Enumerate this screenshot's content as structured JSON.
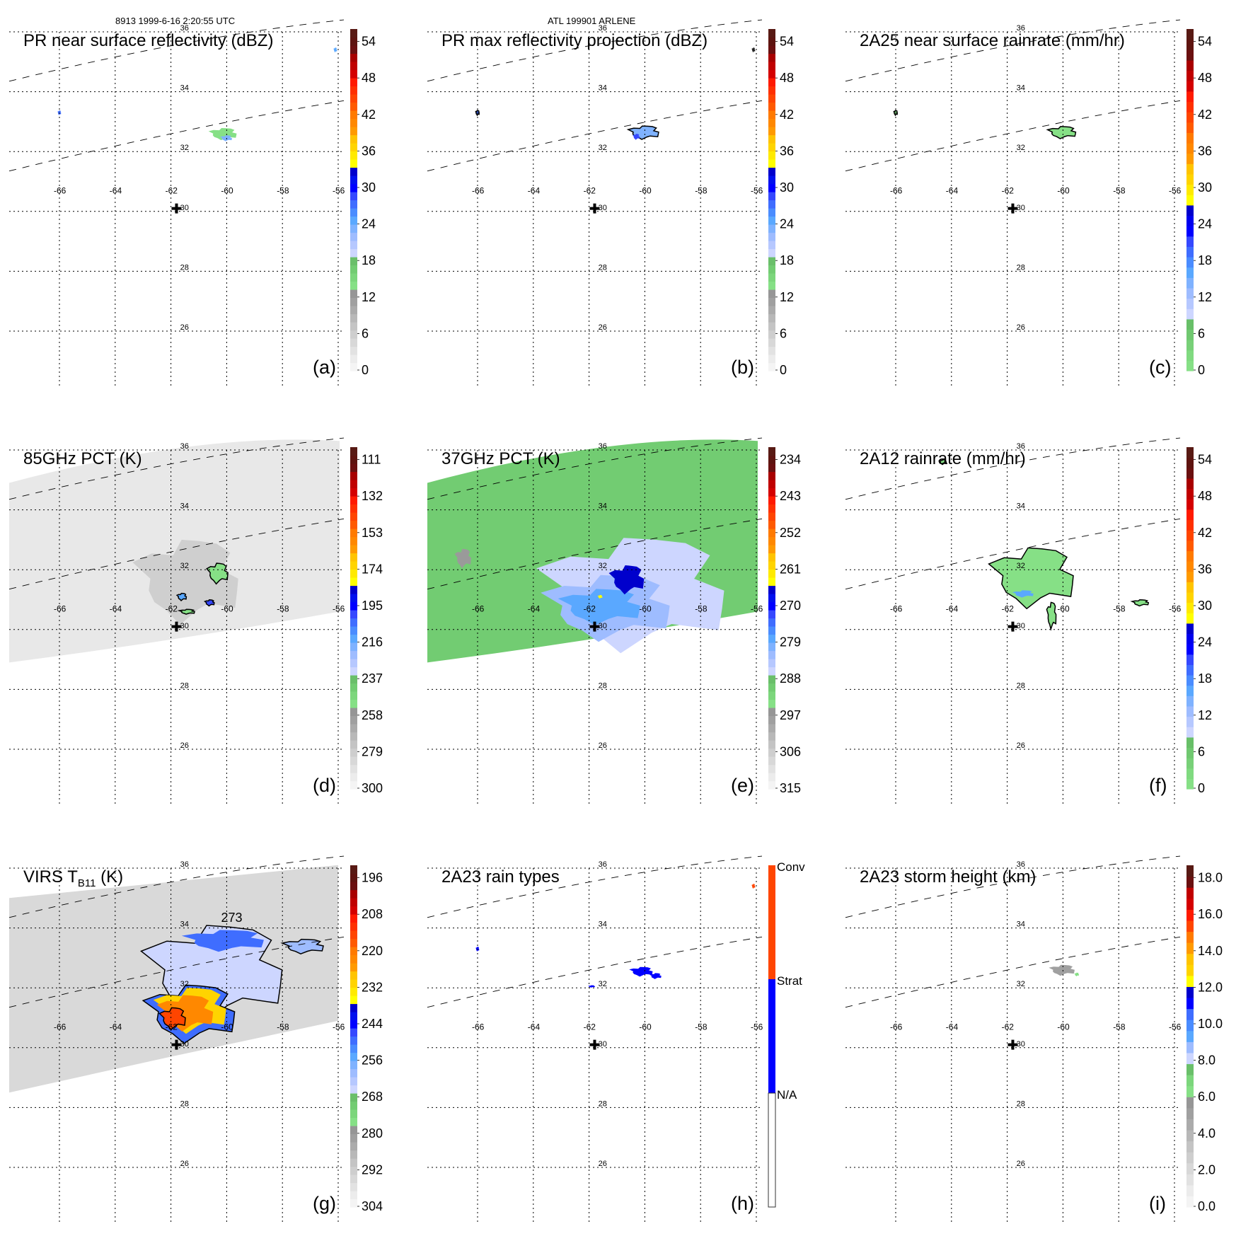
{
  "header": {
    "left": "8913 1999-6-16 2:20:55 UTC",
    "center": "ATL 199901 ARLENE"
  },
  "chart_data": [
    {
      "type": "heatmap",
      "panel_label": "(a)",
      "title": "PR near surface reflectivity (dBZ)",
      "lon_ticks": [
        "-66",
        "-64",
        "-62",
        "-60",
        "-58",
        "-56"
      ],
      "lat_ticks": [
        "36",
        "34",
        "32",
        "30",
        "28",
        "26"
      ],
      "colorbar": {
        "kind": "continuous",
        "ticks": [
          "0",
          "6",
          "12",
          "18",
          "24",
          "30",
          "36",
          "42",
          "48",
          "54"
        ],
        "scheme": "reflectivity"
      },
      "features": [
        {
          "lon": -60.0,
          "lat": 32.6,
          "value": "18-24",
          "desc": "scattered light echoes"
        },
        {
          "lon": -66.0,
          "lat": 33.3,
          "value": "28",
          "desc": "small echo"
        },
        {
          "lon": -56.1,
          "lat": 35.4,
          "value": "24",
          "desc": "small echo at swath edge"
        }
      ],
      "center_marker": {
        "lon": -61.8,
        "lat": 30.1
      }
    },
    {
      "type": "heatmap",
      "panel_label": "(b)",
      "title": "PR max reflectivity projection (dBZ)",
      "lon_ticks": [
        "-66",
        "-64",
        "-62",
        "-60",
        "-58",
        "-56"
      ],
      "lat_ticks": [
        "36",
        "34",
        "32",
        "30",
        "28",
        "26"
      ],
      "colorbar": {
        "kind": "continuous",
        "ticks": [
          "0",
          "6",
          "12",
          "18",
          "24",
          "30",
          "36",
          "42",
          "48",
          "54"
        ],
        "scheme": "reflectivity"
      },
      "features": [
        {
          "lon": -60.0,
          "lat": 32.7,
          "value": "24-30",
          "desc": "echo cluster with contour"
        },
        {
          "lon": -66.0,
          "lat": 33.3,
          "value": "30",
          "desc": "small echo"
        }
      ],
      "center_marker": {
        "lon": -61.8,
        "lat": 30.1
      }
    },
    {
      "type": "heatmap",
      "panel_label": "(c)",
      "title": "2A25 near surface rainrate (mm/hr)",
      "lon_ticks": [
        "-66",
        "-64",
        "-62",
        "-60",
        "-58",
        "-56"
      ],
      "lat_ticks": [
        "36",
        "34",
        "32",
        "30",
        "28",
        "26"
      ],
      "colorbar": {
        "kind": "continuous",
        "ticks": [
          "0",
          "6",
          "12",
          "18",
          "24",
          "30",
          "36",
          "42",
          "48",
          "54"
        ],
        "scheme": "rain"
      },
      "features": [
        {
          "lon": -60.0,
          "lat": 32.7,
          "value": "0-6",
          "desc": "light rain cluster"
        }
      ],
      "center_marker": {
        "lon": -61.8,
        "lat": 30.1
      }
    },
    {
      "type": "heatmap",
      "panel_label": "(d)",
      "title": "85GHz PCT (K)",
      "lon_ticks": [
        "-66",
        "-64",
        "-62",
        "-60",
        "-58",
        "-56"
      ],
      "lat_ticks": [
        "36",
        "34",
        "32",
        "30",
        "28",
        "26"
      ],
      "colorbar": {
        "kind": "continuous",
        "ticks": [
          "300",
          "279",
          "258",
          "237",
          "216",
          "195",
          "174",
          "153",
          "132",
          "111"
        ],
        "scheme": "reflectivity"
      },
      "features": [
        {
          "lon": -60.3,
          "lat": 31.8,
          "value": "237",
          "desc": "depressed PCT area"
        },
        {
          "lon": -61.6,
          "lat": 31.0,
          "value": "216",
          "desc": "small cold cell"
        },
        {
          "lon": -60.6,
          "lat": 30.8,
          "value": "195",
          "desc": "small cold cell"
        }
      ],
      "center_marker": {
        "lon": -61.8,
        "lat": 30.1
      }
    },
    {
      "type": "heatmap",
      "panel_label": "(e)",
      "title": "37GHz PCT (K)",
      "lon_ticks": [
        "-66",
        "-64",
        "-62",
        "-60",
        "-58",
        "-56"
      ],
      "lat_ticks": [
        "36",
        "34",
        "32",
        "30",
        "28",
        "26"
      ],
      "colorbar": {
        "kind": "continuous",
        "ticks": [
          "315",
          "306",
          "297",
          "288",
          "279",
          "270",
          "261",
          "252",
          "243",
          "234"
        ],
        "scheme": "reflectivity"
      },
      "features": [
        {
          "lon": -60.5,
          "lat": 31.6,
          "value": "265",
          "desc": "low PCT core"
        },
        {
          "lon": -61.7,
          "lat": 31.1,
          "value": "261",
          "desc": "yellow pixel"
        }
      ],
      "center_marker": {
        "lon": -61.8,
        "lat": 30.1
      }
    },
    {
      "type": "heatmap",
      "panel_label": "(f)",
      "title": "2A12 rainrate (mm/hr)",
      "lon_ticks": [
        "-66",
        "-64",
        "-62",
        "-60",
        "-58",
        "-56"
      ],
      "lat_ticks": [
        "36",
        "34",
        "32",
        "30",
        "28",
        "26"
      ],
      "colorbar": {
        "kind": "continuous",
        "ticks": [
          "0",
          "6",
          "12",
          "18",
          "24",
          "30",
          "36",
          "42",
          "48",
          "54"
        ],
        "scheme": "rain"
      },
      "features": [
        {
          "lon": -61.0,
          "lat": 31.8,
          "value": "0-12",
          "desc": "broad light rain area"
        },
        {
          "lon": -57.2,
          "lat": 30.9,
          "value": "0-6",
          "desc": "rain band"
        }
      ],
      "center_marker": {
        "lon": -61.8,
        "lat": 30.1
      }
    },
    {
      "type": "heatmap",
      "panel_label": "(g)",
      "title": "VIRS T",
      "title_sub": "B11",
      "title_suffix": " (K)",
      "annotation": "273",
      "lon_ticks": [
        "-66",
        "-64",
        "-62",
        "-60",
        "-58",
        "-56"
      ],
      "lat_ticks": [
        "36",
        "34",
        "32",
        "30",
        "28",
        "26"
      ],
      "colorbar": {
        "kind": "continuous",
        "ticks": [
          "304",
          "292",
          "280",
          "268",
          "256",
          "244",
          "232",
          "220",
          "208",
          "196"
        ],
        "scheme": "reflectivity"
      },
      "features": [
        {
          "lon": -61.3,
          "lat": 31.2,
          "value": "208-232",
          "desc": "cold cloud top core"
        },
        {
          "lon": -60.5,
          "lat": 33.5,
          "value": "244-268",
          "desc": "cloud band"
        }
      ],
      "center_marker": {
        "lon": -61.8,
        "lat": 30.1
      }
    },
    {
      "type": "heatmap",
      "panel_label": "(h)",
      "title": "2A23 rain types",
      "lon_ticks": [
        "-66",
        "-64",
        "-62",
        "-60",
        "-58",
        "-56"
      ],
      "lat_ticks": [
        "36",
        "34",
        "32",
        "30",
        "28",
        "26"
      ],
      "colorbar": {
        "kind": "categorical",
        "categories": [
          {
            "label": "Conv",
            "color": "#ff4500"
          },
          {
            "label": "Strat",
            "color": "#0000ff"
          },
          {
            "label": "N/A",
            "color": "#ffffff"
          }
        ]
      },
      "features": [
        {
          "lon": -60.0,
          "lat": 32.6,
          "value": "Strat",
          "desc": "stratiform echoes"
        },
        {
          "lon": -56.1,
          "lat": 35.4,
          "value": "Conv",
          "desc": "convective pixel"
        }
      ],
      "center_marker": {
        "lon": -61.8,
        "lat": 30.1
      }
    },
    {
      "type": "heatmap",
      "panel_label": "(i)",
      "title": "2A23 storm height (km)",
      "lon_ticks": [
        "-66",
        "-64",
        "-62",
        "-60",
        "-58",
        "-56"
      ],
      "lat_ticks": [
        "36",
        "34",
        "32",
        "30",
        "28",
        "26"
      ],
      "colorbar": {
        "kind": "continuous",
        "ticks": [
          "0.0",
          "2.0",
          "4.0",
          "6.0",
          "8.0",
          "10.0",
          "12.0",
          "14.0",
          "16.0",
          "18.0"
        ],
        "scheme": "height"
      },
      "features": [
        {
          "lon": -60.0,
          "lat": 32.6,
          "value": "3-5",
          "desc": "low storm heights"
        }
      ],
      "center_marker": {
        "lon": -61.8,
        "lat": 30.1
      }
    }
  ]
}
